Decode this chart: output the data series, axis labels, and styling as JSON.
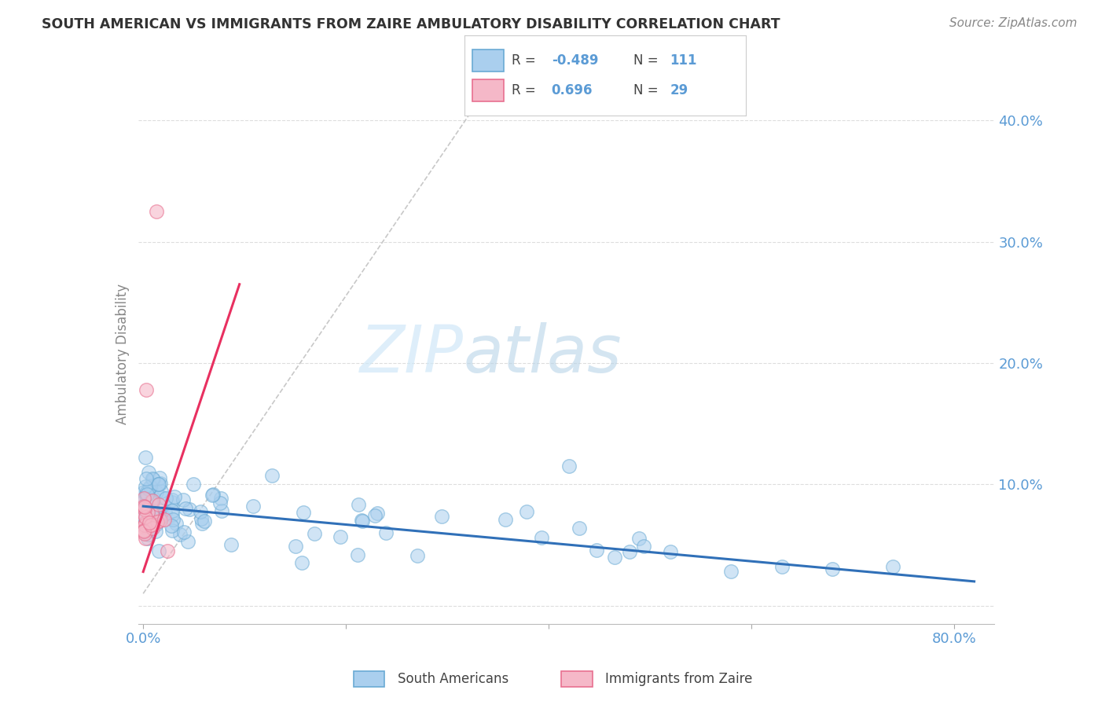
{
  "title": "SOUTH AMERICAN VS IMMIGRANTS FROM ZAIRE AMBULATORY DISABILITY CORRELATION CHART",
  "source": "Source: ZipAtlas.com",
  "ylabel": "Ambulatory Disability",
  "blue_R": -0.489,
  "blue_N": 111,
  "pink_R": 0.696,
  "pink_N": 29,
  "blue_color": "#aacfee",
  "pink_color": "#f5b8c8",
  "blue_edge_color": "#6aaad4",
  "pink_edge_color": "#e87090",
  "blue_line_color": "#3070b8",
  "pink_line_color": "#e83060",
  "dash_line_color": "#c8c8c8",
  "legend_label_blue": "South Americans",
  "legend_label_pink": "Immigrants from Zaire",
  "watermark_zip": "ZIP",
  "watermark_atlas": "atlas",
  "background_color": "#ffffff",
  "grid_color": "#dddddd",
  "title_color": "#333333",
  "axis_label_color": "#5b9bd5",
  "tick_color": "#5b9bd5",
  "ylabel_color": "#888888",
  "source_color": "#888888",
  "xlim": [
    -0.005,
    0.84
  ],
  "ylim": [
    -0.015,
    0.43
  ],
  "ytick_vals": [
    0.0,
    0.1,
    0.2,
    0.3,
    0.4
  ],
  "ytick_labels": [
    "",
    "10.0%",
    "20.0%",
    "30.0%",
    "40.0%"
  ],
  "xtick_vals": [
    0.0,
    0.2,
    0.4,
    0.6,
    0.8
  ],
  "xtick_labels": [
    "0.0%",
    "",
    "",
    "",
    "80.0%"
  ],
  "blue_line_x0": 0.0,
  "blue_line_x1": 0.82,
  "blue_line_y0": 0.082,
  "blue_line_y1": 0.02,
  "pink_line_x0": 0.0,
  "pink_line_x1": 0.095,
  "pink_line_y0": 0.028,
  "pink_line_y1": 0.265,
  "dash_line_x0": 0.0,
  "dash_line_x1": 0.33,
  "dash_line_y0": 0.01,
  "dash_line_y1": 0.415
}
